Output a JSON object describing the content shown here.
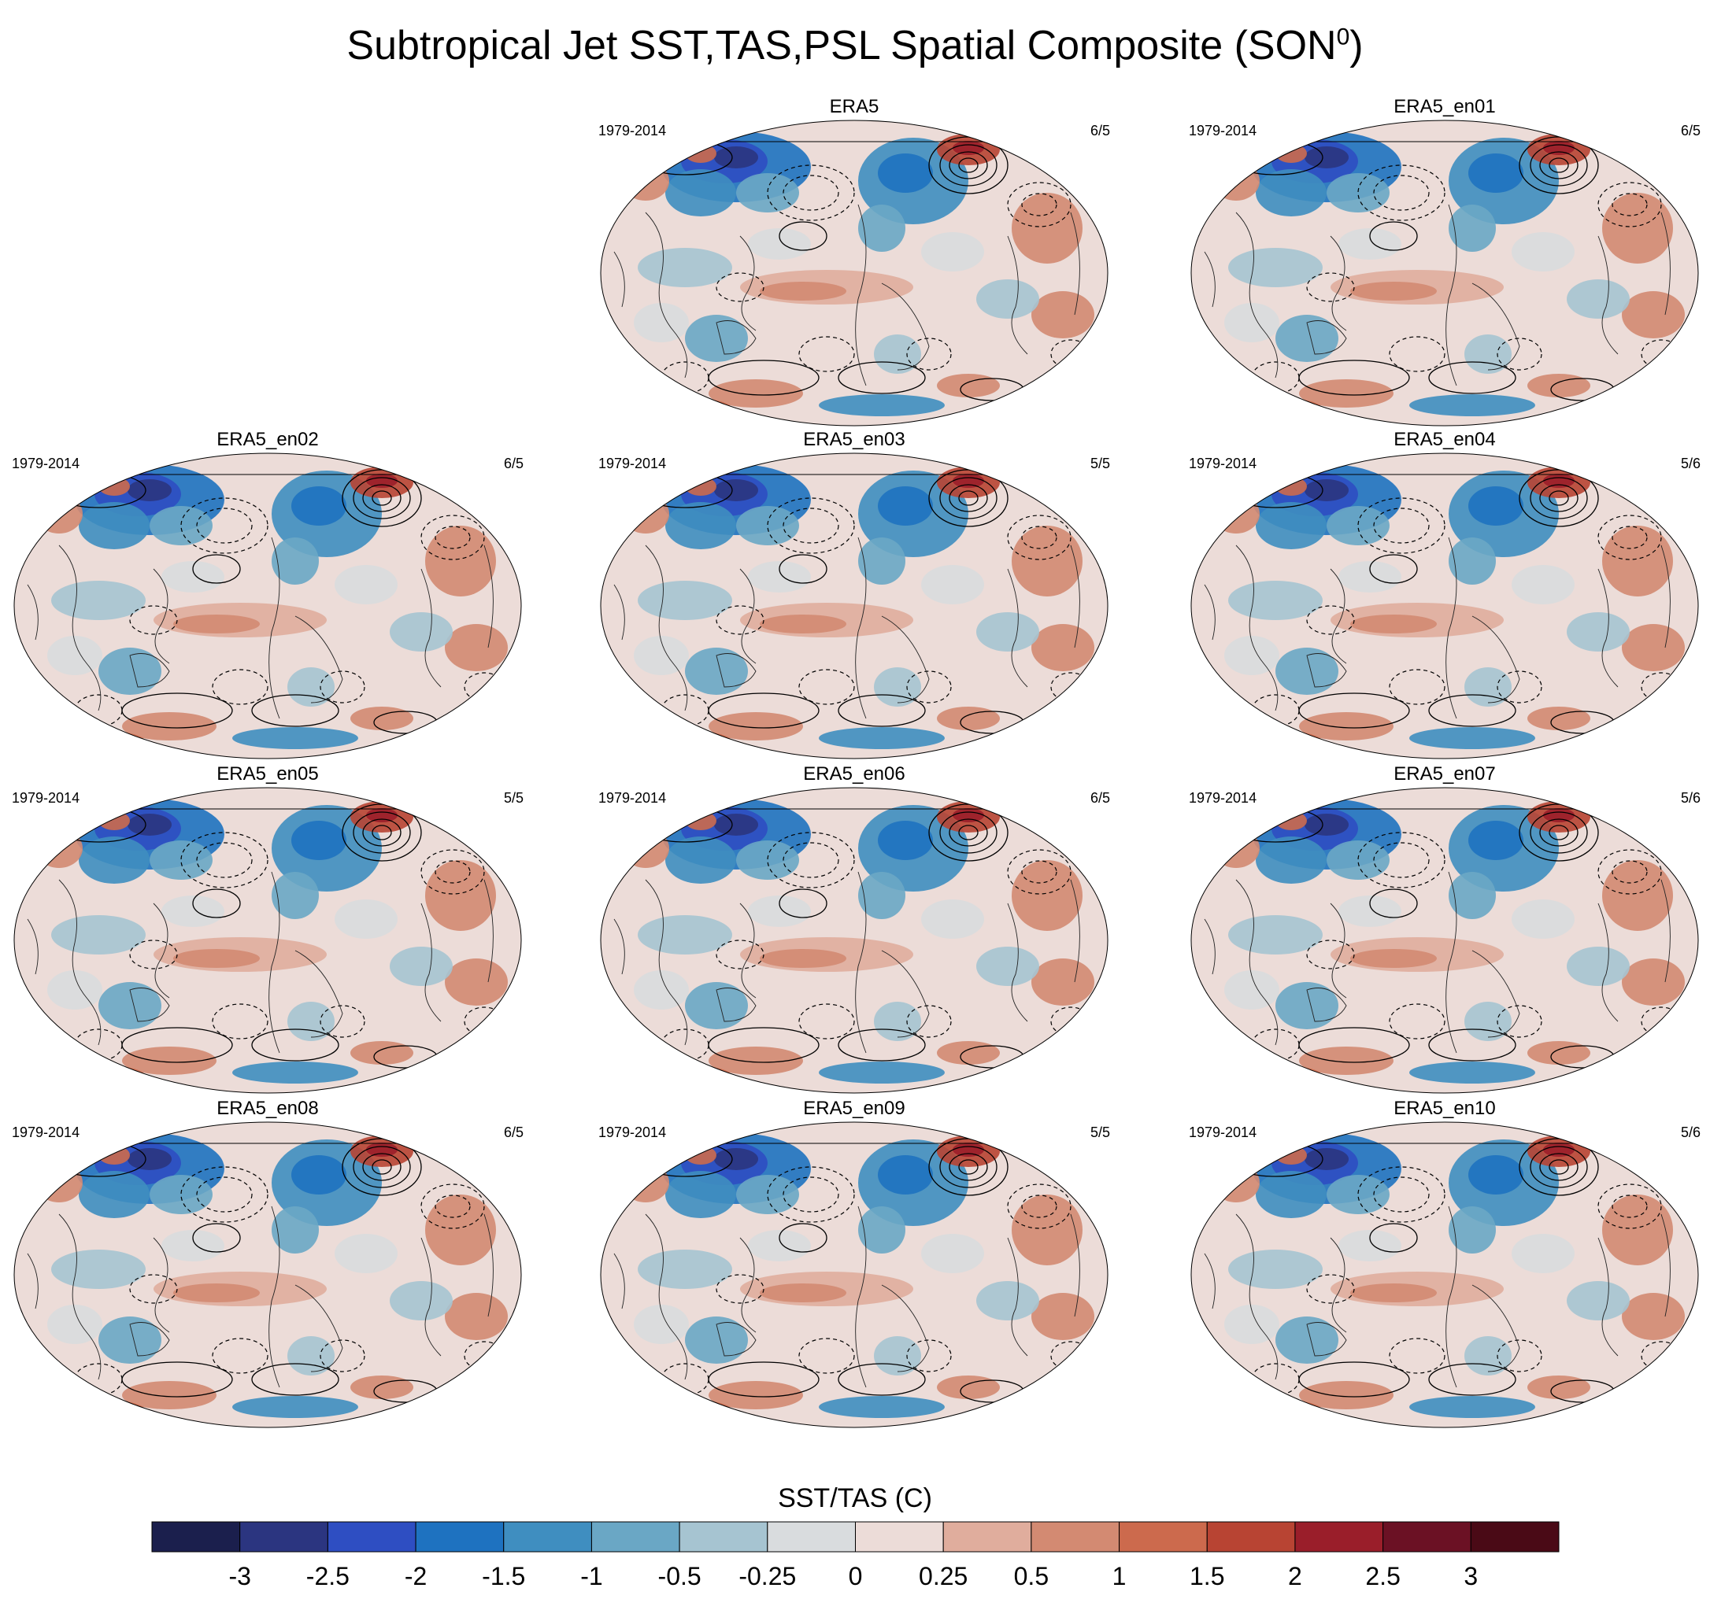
{
  "title": {
    "text": "Subtropical Jet SST,TAS,PSL Spatial Composite (SON",
    "superscript": "0",
    "close": ")"
  },
  "panels": [
    {
      "name": "ERA5",
      "period": "1979-2014",
      "count": "6/5"
    },
    {
      "name": "ERA5_en01",
      "period": "1979-2014",
      "count": "6/5"
    },
    {
      "name": "ERA5_en02",
      "period": "1979-2014",
      "count": "6/5"
    },
    {
      "name": "ERA5_en03",
      "period": "1979-2014",
      "count": "5/5"
    },
    {
      "name": "ERA5_en04",
      "period": "1979-2014",
      "count": "5/6"
    },
    {
      "name": "ERA5_en05",
      "period": "1979-2014",
      "count": "5/5"
    },
    {
      "name": "ERA5_en06",
      "period": "1979-2014",
      "count": "6/5"
    },
    {
      "name": "ERA5_en07",
      "period": "1979-2014",
      "count": "5/6"
    },
    {
      "name": "ERA5_en08",
      "period": "1979-2014",
      "count": "6/5"
    },
    {
      "name": "ERA5_en09",
      "period": "1979-2014",
      "count": "5/5"
    },
    {
      "name": "ERA5_en10",
      "period": "1979-2014",
      "count": "5/6"
    }
  ],
  "chart_data": {
    "type": "heatmap",
    "projection": "Hammer-Aitoff global map panels with PSL contours",
    "colorbar": {
      "title": "SST/TAS (C)",
      "tick_labels": [
        "-3",
        "-2.5",
        "-2",
        "-1.5",
        "-1",
        "-0.5",
        "-0.25",
        "0",
        "0.25",
        "0.5",
        "1",
        "1.5",
        "2",
        "2.5",
        "3"
      ],
      "colors": [
        "#1b1f4d",
        "#2b3580",
        "#2e4ec2",
        "#1e72c0",
        "#3f8ec0",
        "#6aa7c5",
        "#a6c4d1",
        "#d9dcde",
        "#ecdcd8",
        "#e0ad9d",
        "#d38a72",
        "#cc6a4d",
        "#b84433",
        "#9a1e2a",
        "#6b1124",
        "#4a0a16"
      ]
    },
    "pattern_note": "Cold anomalies over North America / North Atlantic and Eurasia; warm anomalies over NE Asia, Arctic and Southern Ocean edges; dashed contours = negative PSL, solid = positive PSL"
  }
}
